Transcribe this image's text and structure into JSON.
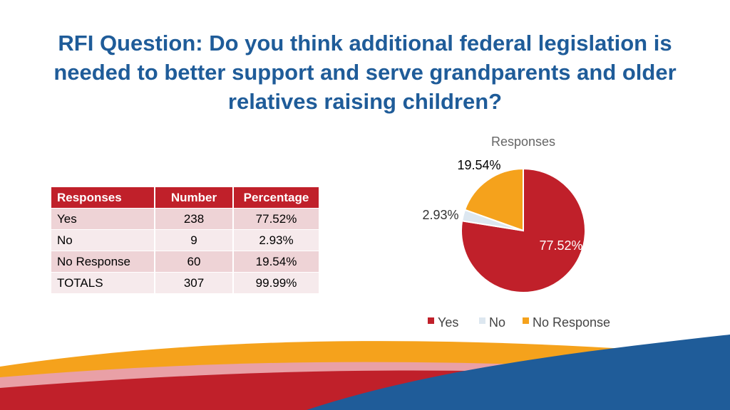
{
  "title": "RFI Question:  Do you think additional federal legislation is needed to better support and serve grandparents and older relatives raising children?",
  "table": {
    "headers": [
      "Responses",
      "Number",
      "Percentage"
    ],
    "rows": [
      [
        "Yes",
        "238",
        "77.52%"
      ],
      [
        "No",
        "9",
        "2.93%"
      ],
      [
        "No Response",
        "60",
        "19.54%"
      ],
      [
        "TOTALS",
        "307",
        "99.99%"
      ]
    ]
  },
  "chart_data": {
    "type": "pie",
    "title": "Responses",
    "categories": [
      "Yes",
      "No",
      "No Response"
    ],
    "values": [
      77.52,
      2.93,
      19.54
    ],
    "labels": [
      "77.52%",
      "2.93%",
      "19.54%"
    ],
    "colors": [
      "#c0202a",
      "#dde7f0",
      "#f5a21c"
    ],
    "legend": "bottom"
  },
  "colors": {
    "title": "#1f5c99",
    "header": "#c0202a",
    "footer_blue": "#1f5c99",
    "footer_orange": "#f5a21c"
  }
}
